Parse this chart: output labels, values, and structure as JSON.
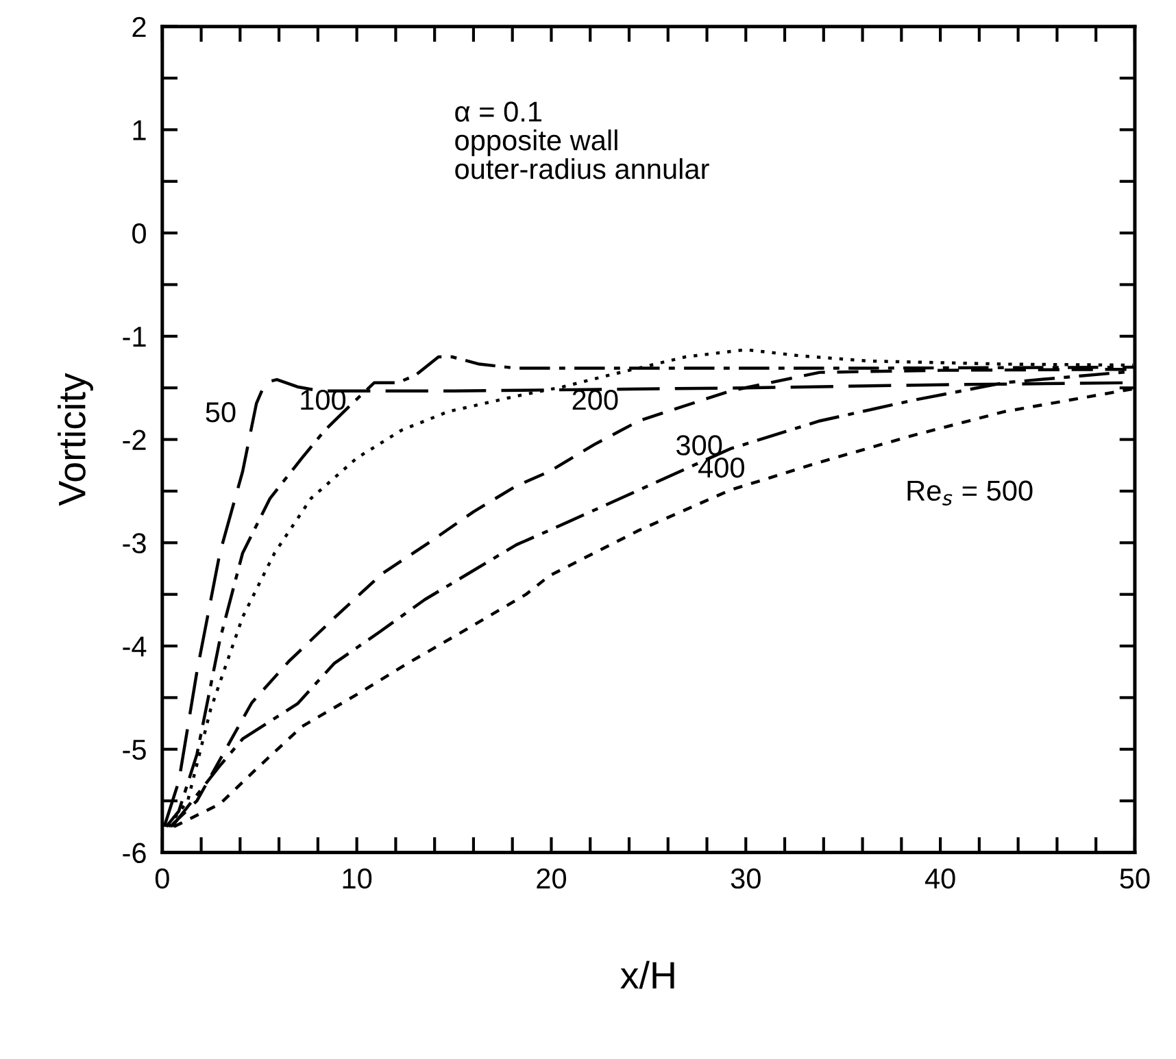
{
  "chart_data": {
    "type": "line",
    "xlabel": "x/H",
    "ylabel": "Vorticity",
    "xlim": [
      0,
      50
    ],
    "ylim": [
      -6,
      2
    ],
    "xticks": [
      0,
      {
        "value": 2,
        "label": null
      },
      {
        "value": 4,
        "label": null
      },
      {
        "value": 6,
        "label": null
      },
      {
        "value": 8,
        "label": null
      },
      10,
      {
        "value": 12,
        "label": null
      },
      {
        "value": 14,
        "label": null
      },
      {
        "value": 16,
        "label": null
      },
      {
        "value": 18,
        "label": null
      },
      20,
      {
        "value": 22,
        "label": null
      },
      {
        "value": 24,
        "label": null
      },
      {
        "value": 26,
        "label": null
      },
      {
        "value": 28,
        "label": null
      },
      30,
      {
        "value": 32,
        "label": null
      },
      {
        "value": 34,
        "label": null
      },
      {
        "value": 36,
        "label": null
      },
      {
        "value": 38,
        "label": null
      },
      40,
      {
        "value": 42,
        "label": null
      },
      {
        "value": 44,
        "label": null
      },
      {
        "value": 46,
        "label": null
      },
      {
        "value": 48,
        "label": null
      },
      50
    ],
    "yticks": [
      -6,
      {
        "value": -5.5,
        "label": null
      },
      -5,
      {
        "value": -4.5,
        "label": null
      },
      -4,
      {
        "value": -3.5,
        "label": null
      },
      -3,
      {
        "value": -2.5,
        "label": null
      },
      -2,
      {
        "value": -1.5,
        "label": null
      },
      -1,
      {
        "value": -0.5,
        "label": null
      },
      0,
      {
        "value": 0.5,
        "label": null
      },
      1,
      {
        "value": 1.5,
        "label": null
      },
      2
    ],
    "grid": false,
    "legend": false,
    "marker": "none",
    "series": [
      {
        "color": "#000000",
        "line_style": "longdash",
        "x": [
          0.1,
          0.85,
          1.78,
          2.96,
          4.13,
          4.84,
          5.3,
          5.89,
          6.95,
          8.12,
          15,
          30,
          40,
          50
        ],
        "values": [
          -5.75,
          -5.31,
          -4.25,
          -3.1,
          -2.31,
          -1.65,
          -1.45,
          -1.42,
          -1.49,
          -1.53,
          -1.53,
          -1.5,
          -1.47,
          -1.45
        ]
      },
      {
        "color": "#000000",
        "line_style": "dashdot",
        "x": [
          0.2,
          0.85,
          1.78,
          2.96,
          4.13,
          5.54,
          7.18,
          8.36,
          9.77,
          10.9,
          12.1,
          13.0,
          14.2,
          14.9,
          16.3,
          18.2,
          25,
          35,
          50
        ],
        "values": [
          -5.75,
          -5.6,
          -5.05,
          -3.94,
          -3.1,
          -2.57,
          -2.18,
          -1.91,
          -1.65,
          -1.45,
          -1.45,
          -1.38,
          -1.2,
          -1.2,
          -1.27,
          -1.31,
          -1.31,
          -1.31,
          -1.3
        ]
      },
      {
        "color": "#000000",
        "line_style": "dotted",
        "x": [
          0.3,
          1.31,
          2.49,
          4.13,
          5.77,
          7.65,
          10.0,
          12.3,
          14.7,
          18.2,
          20.6,
          22.9,
          26.9,
          30.0,
          32.8,
          36.3,
          43.3,
          49.9
        ],
        "values": [
          -5.75,
          -5.5,
          -4.61,
          -3.72,
          -3.1,
          -2.57,
          -2.18,
          -1.91,
          -1.73,
          -1.58,
          -1.49,
          -1.38,
          -1.2,
          -1.13,
          -1.19,
          -1.24,
          -1.27,
          -1.28
        ]
      },
      {
        "color": "#000000",
        "line_style": "dashed",
        "x": [
          0.4,
          1.78,
          4.6,
          6.5,
          9.0,
          11.3,
          13.7,
          16.0,
          18.2,
          19.9,
          22.2,
          24.5,
          29.2,
          33.8,
          40,
          50
        ],
        "values": [
          -5.75,
          -5.5,
          -4.55,
          -4.15,
          -3.7,
          -3.3,
          -3.0,
          -2.7,
          -2.45,
          -2.31,
          -2.05,
          -1.82,
          -1.53,
          -1.35,
          -1.33,
          -1.32
        ]
      },
      {
        "color": "#000000",
        "line_style": "dashdot",
        "x": [
          0.5,
          2.96,
          4.13,
          6.95,
          8.83,
          11.2,
          13.5,
          15.9,
          18.2,
          19.9,
          24.5,
          29.2,
          33.8,
          38.6,
          43.3,
          49.9
        ],
        "values": [
          -5.75,
          -5.16,
          -4.9,
          -4.56,
          -4.17,
          -3.86,
          -3.55,
          -3.28,
          -3.02,
          -2.88,
          -2.49,
          -2.09,
          -1.82,
          -1.62,
          -1.45,
          -1.34
        ]
      },
      {
        "color": "#000000",
        "line_style": "shortdash",
        "x": [
          0.6,
          2.96,
          4.84,
          7.18,
          10.0,
          12.6,
          15.9,
          18.7,
          19.9,
          24.5,
          29.2,
          33.8,
          38.6,
          43.3,
          49.9
        ],
        "values": [
          -5.75,
          -5.53,
          -5.19,
          -4.78,
          -4.47,
          -4.17,
          -3.81,
          -3.5,
          -3.32,
          -2.88,
          -2.49,
          -2.22,
          -1.96,
          -1.73,
          -1.51
        ]
      }
    ],
    "annotations": [
      "α = 0.1\nopposite wall\nouter-radius annular",
      "50",
      "100",
      "200",
      "300",
      "400",
      "Re$_{s}$ = 500"
    ]
  }
}
